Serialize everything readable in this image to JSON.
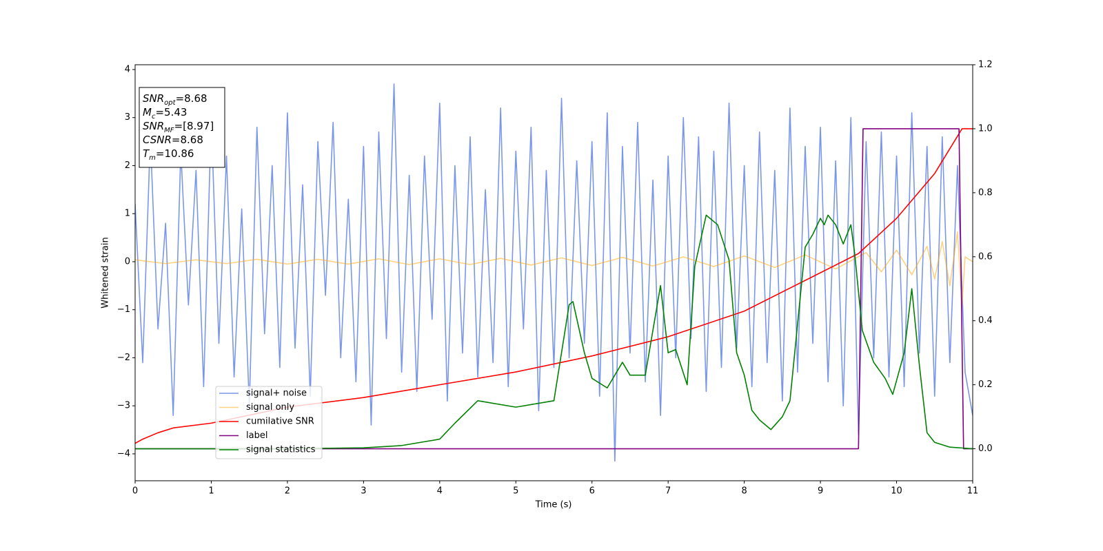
{
  "chart_data": {
    "type": "line",
    "xlabel": "Time (s)",
    "ylabel": "Whitened strain",
    "xlim": [
      0,
      11
    ],
    "xticks": [
      0,
      1,
      2,
      3,
      4,
      5,
      6,
      7,
      8,
      9,
      10,
      11
    ],
    "ylim": [
      -4.56,
      4.1
    ],
    "yticks": [
      {
        "value": -4,
        "label": "−4"
      },
      {
        "value": -3,
        "label": "−3"
      },
      {
        "value": -2,
        "label": "−2"
      },
      {
        "value": -1,
        "label": "−1"
      },
      0,
      1,
      2,
      3,
      4
    ],
    "y2lim": [
      -0.1,
      1.2
    ],
    "y2ticks": [
      {
        "value": 0,
        "label": "0.0"
      },
      {
        "value": 0.2,
        "label": "0.2"
      },
      {
        "value": 0.4,
        "label": "0.4"
      },
      {
        "value": 0.6,
        "label": "0.6"
      },
      {
        "value": 0.8,
        "label": "0.8"
      },
      {
        "value": 1,
        "label": "1.0"
      },
      {
        "value": 1.2,
        "label": "1.2"
      }
    ],
    "legend": "lower left",
    "annotations": [
      {
        "symbol": "SNR",
        "subscript": "opt",
        "text": "=8.68"
      },
      {
        "symbol": "M",
        "subscript": "c",
        "text": "=5.43"
      },
      {
        "symbol": "SNR",
        "subscript": "MF",
        "text": "=[8.97]"
      },
      {
        "symbol": "CSNR",
        "text": "=8.68"
      },
      {
        "symbol": "T",
        "subscript": "m",
        "text": "=10.86"
      }
    ],
    "series": [
      {
        "name": "signal+ noise",
        "color": "#4169e1",
        "opacity": 0.7,
        "x": [
          0,
          0.1,
          0.2,
          0.3,
          0.4,
          0.5,
          0.6,
          0.7,
          0.8,
          0.9,
          1,
          1.1,
          1.2,
          1.3,
          1.4,
          1.5,
          1.6,
          1.7,
          1.8,
          1.9,
          2,
          2.1,
          2.2,
          2.3,
          2.4,
          2.5,
          2.6,
          2.7,
          2.8,
          2.9,
          3,
          3.1,
          3.2,
          3.3,
          3.4,
          3.5,
          3.6,
          3.7,
          3.8,
          3.9,
          4,
          4.1,
          4.2,
          4.3,
          4.4,
          4.5,
          4.6,
          4.7,
          4.8,
          4.9,
          5,
          5.1,
          5.2,
          5.3,
          5.4,
          5.5,
          5.6,
          5.7,
          5.8,
          5.9,
          6,
          6.1,
          6.2,
          6.3,
          6.4,
          6.5,
          6.6,
          6.7,
          6.8,
          6.9,
          7,
          7.1,
          7.2,
          7.3,
          7.4,
          7.5,
          7.6,
          7.7,
          7.8,
          7.9,
          8,
          8.1,
          8.2,
          8.3,
          8.4,
          8.5,
          8.6,
          8.7,
          8.8,
          8.9,
          9,
          9.1,
          9.2,
          9.3,
          9.4,
          9.5,
          9.6,
          9.7,
          9.8,
          9.9,
          10,
          10.1,
          10.2,
          10.3,
          10.4,
          10.5,
          10.6,
          10.7,
          10.8,
          10.9,
          11
        ],
        "values": [
          1.2,
          -2.1,
          2.6,
          -1.4,
          0.8,
          -3.2,
          2.3,
          -0.9,
          1.9,
          -2.6,
          3.0,
          -1.7,
          2.2,
          -2.4,
          1.1,
          -3.0,
          2.8,
          -1.5,
          2.0,
          -2.2,
          3.1,
          -1.8,
          1.6,
          -2.8,
          2.5,
          -0.7,
          2.9,
          -2.0,
          1.3,
          -2.5,
          2.4,
          -3.4,
          2.7,
          -1.6,
          3.7,
          -2.3,
          1.8,
          -2.7,
          2.2,
          -1.2,
          3.3,
          -2.9,
          2.0,
          -1.9,
          2.6,
          -2.4,
          1.5,
          -2.1,
          3.2,
          -2.6,
          2.3,
          -1.4,
          2.8,
          -3.1,
          1.9,
          -2.2,
          3.4,
          -2.0,
          2.1,
          -1.7,
          2.5,
          -2.8,
          3.1,
          -4.15,
          2.4,
          -1.9,
          2.9,
          -2.5,
          1.7,
          -3.2,
          2.2,
          -2.0,
          3.0,
          -1.6,
          2.6,
          -2.7,
          2.3,
          -2.2,
          3.3,
          -1.8,
          2.0,
          -2.6,
          2.7,
          -2.1,
          1.9,
          -2.9,
          3.2,
          -2.3,
          2.4,
          -1.7,
          2.8,
          -2.5,
          2.1,
          -3.0,
          3.0,
          -3.6,
          2.5,
          -2.0,
          2.7,
          -2.4,
          2.2,
          -2.6,
          3.1,
          -1.9,
          2.4,
          -2.8,
          2.6,
          -2.1,
          2.0,
          -2.3,
          -3.2
        ]
      },
      {
        "name": "signal only",
        "color": "orange",
        "opacity": 0.5,
        "x": [
          0,
          0.4,
          0.8,
          1.2,
          1.6,
          2,
          2.4,
          2.8,
          3.2,
          3.6,
          4,
          4.4,
          4.8,
          5.2,
          5.6,
          6,
          6.4,
          6.8,
          7.2,
          7.6,
          8,
          8.4,
          8.8,
          9.2,
          9.6,
          9.8,
          10,
          10.2,
          10.4,
          10.5,
          10.6,
          10.7,
          10.8,
          10.86,
          10.9,
          11
        ],
        "values": [
          0.04,
          -0.04,
          0.04,
          -0.04,
          0.05,
          -0.05,
          0.05,
          -0.05,
          0.06,
          -0.06,
          0.06,
          -0.06,
          0.07,
          -0.07,
          0.08,
          -0.08,
          0.09,
          -0.09,
          0.1,
          -0.1,
          0.12,
          -0.12,
          0.14,
          -0.15,
          0.19,
          -0.21,
          0.24,
          -0.27,
          0.32,
          -0.36,
          0.42,
          -0.5,
          0.62,
          -0.9,
          0.1,
          0
        ]
      },
      {
        "name": "cumilative SNR",
        "color": "red",
        "axis": "y2",
        "x": [
          0,
          0.1,
          0.3,
          0.5,
          1,
          2,
          3,
          4,
          5,
          6,
          7,
          8,
          9,
          9.5,
          10,
          10.5,
          10.86,
          11
        ],
        "values": [
          0.017,
          0.03,
          0.05,
          0.065,
          0.08,
          0.13,
          0.16,
          0.2,
          0.24,
          0.29,
          0.35,
          0.43,
          0.55,
          0.61,
          0.72,
          0.86,
          1.0,
          1.0
        ]
      },
      {
        "name": "label",
        "color": "purple",
        "axis": "y2",
        "x": [
          0,
          9.5,
          9.56,
          10.82,
          10.88,
          11
        ],
        "values": [
          0,
          0,
          1,
          1,
          0,
          0
        ]
      },
      {
        "name": "signal statistics",
        "color": "green",
        "axis": "y2",
        "x": [
          0,
          1,
          2,
          3,
          3.5,
          4,
          4.2,
          4.5,
          5,
          5.5,
          5.7,
          5.75,
          5.9,
          6,
          6.2,
          6.4,
          6.5,
          6.7,
          6.8,
          6.9,
          7,
          7.1,
          7.25,
          7.35,
          7.5,
          7.65,
          7.8,
          7.9,
          8,
          8.1,
          8.2,
          8.35,
          8.5,
          8.6,
          8.8,
          8.9,
          9,
          9.05,
          9.1,
          9.2,
          9.3,
          9.4,
          9.45,
          9.55,
          9.7,
          9.85,
          9.95,
          10.1,
          10.2,
          10.3,
          10.4,
          10.5,
          10.7,
          11
        ],
        "values": [
          0,
          0,
          0,
          0.003,
          0.01,
          0.03,
          0.08,
          0.15,
          0.13,
          0.15,
          0.45,
          0.46,
          0.3,
          0.22,
          0.19,
          0.27,
          0.23,
          0.23,
          0.37,
          0.51,
          0.3,
          0.31,
          0.2,
          0.57,
          0.73,
          0.7,
          0.59,
          0.3,
          0.23,
          0.12,
          0.09,
          0.06,
          0.1,
          0.15,
          0.63,
          0.67,
          0.72,
          0.7,
          0.73,
          0.7,
          0.64,
          0.7,
          0.61,
          0.37,
          0.27,
          0.22,
          0.17,
          0.3,
          0.5,
          0.26,
          0.05,
          0.02,
          0.005,
          0
        ]
      }
    ]
  }
}
